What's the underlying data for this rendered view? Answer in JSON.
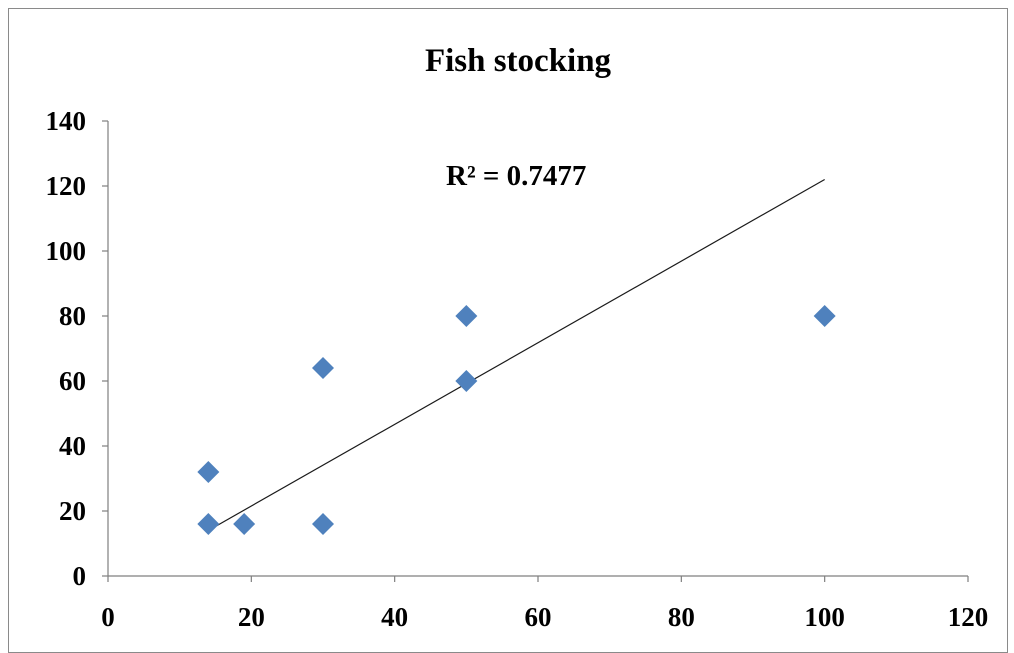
{
  "chart_data": {
    "type": "scatter",
    "title": "Fish stocking",
    "xlabel": "",
    "ylabel": "",
    "xlim": [
      0,
      120
    ],
    "ylim": [
      0,
      140
    ],
    "xticks": [
      0,
      20,
      40,
      60,
      80,
      100,
      120
    ],
    "yticks": [
      0,
      20,
      40,
      60,
      80,
      100,
      120,
      140
    ],
    "grid": false,
    "legend": "none",
    "marker": "diamond",
    "marker_color": "#4F81BD",
    "series": [
      {
        "points": [
          {
            "x": 14,
            "y": 32
          },
          {
            "x": 14,
            "y": 16
          },
          {
            "x": 19,
            "y": 16
          },
          {
            "x": 30,
            "y": 64
          },
          {
            "x": 30,
            "y": 16
          },
          {
            "x": 50,
            "y": 80
          },
          {
            "x": 50,
            "y": 60
          },
          {
            "x": 100,
            "y": 80
          }
        ]
      }
    ],
    "trendline": {
      "type": "linear",
      "from": {
        "x": 14,
        "y": 14
      },
      "to": {
        "x": 100,
        "y": 122
      },
      "color": "#1a1a1a"
    },
    "annotation": "R² = 0.7477"
  }
}
